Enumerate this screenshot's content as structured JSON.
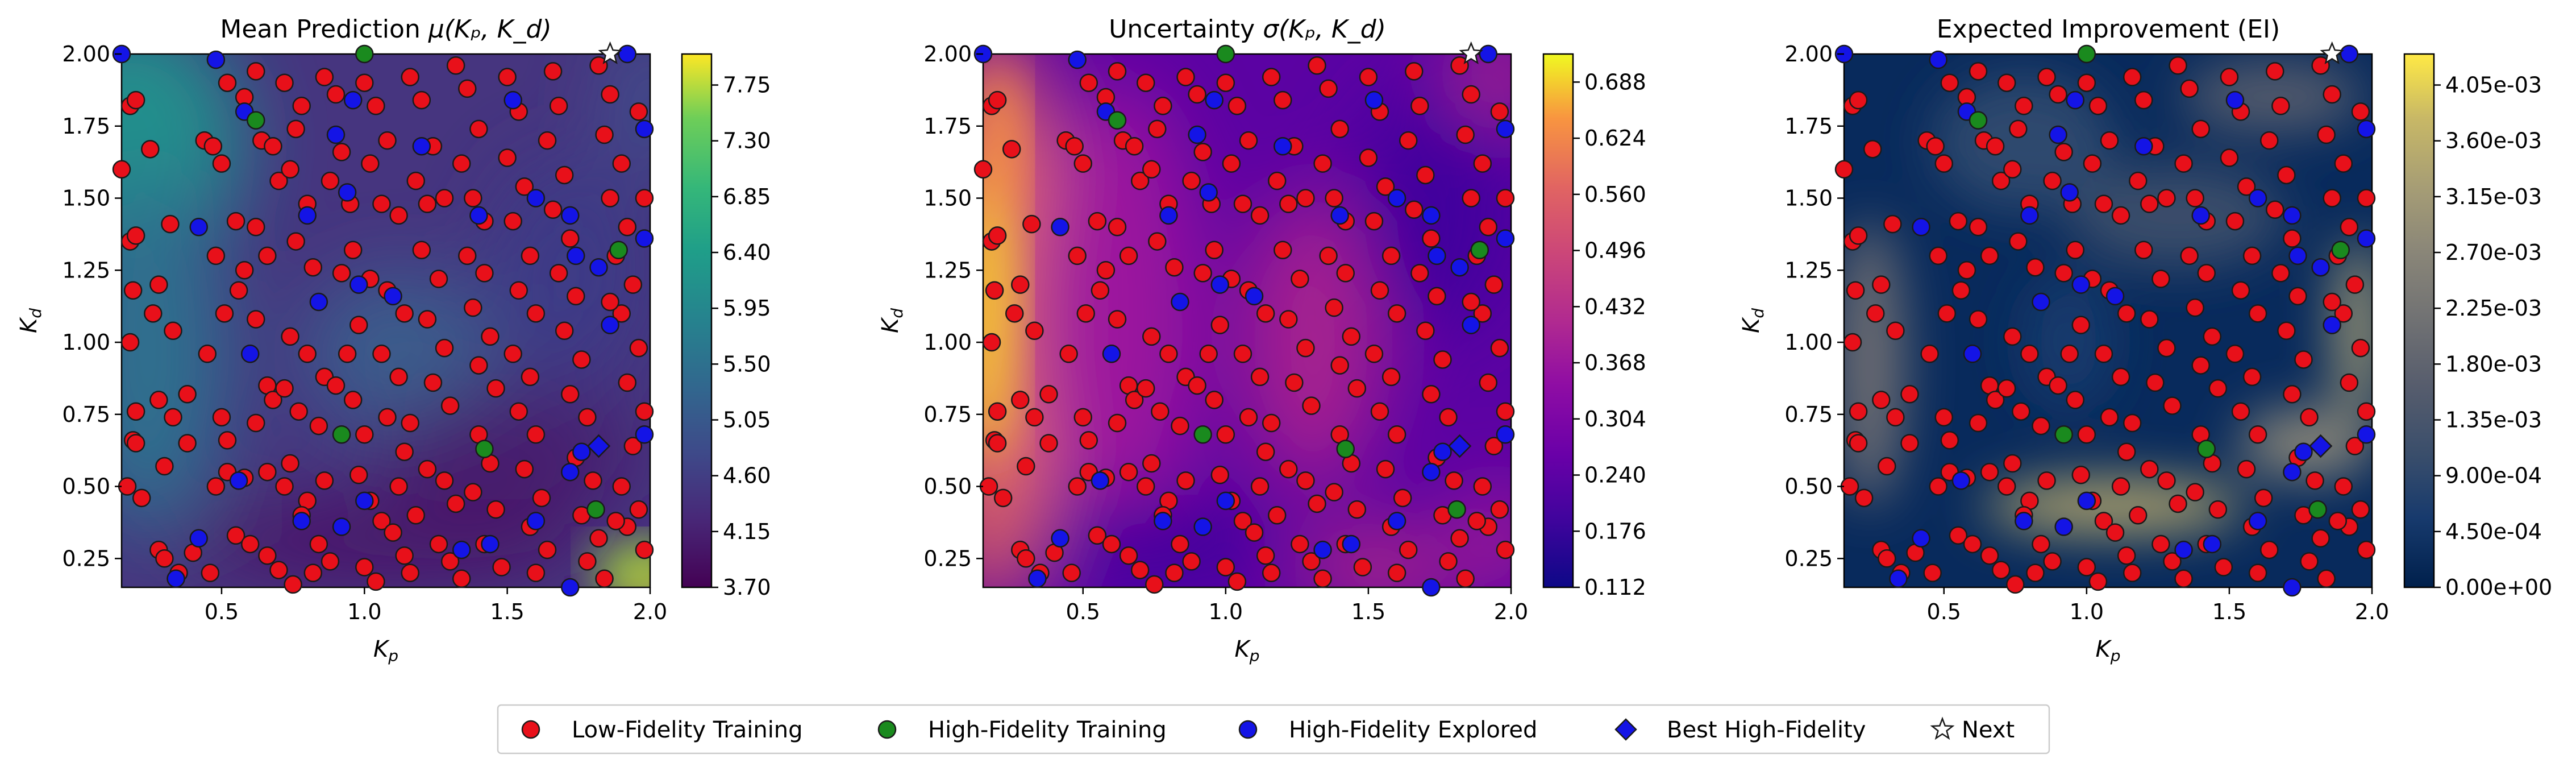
{
  "chart_data": [
    {
      "type": "heatmap",
      "title_main": "Mean Prediction ",
      "title_math": "μ(Kₚ, K_d)",
      "xlabel": "K_p",
      "ylabel": "K_d",
      "xlim": [
        0.15,
        2.0
      ],
      "ylim": [
        0.15,
        2.0
      ],
      "xticks": [
        "0.5",
        "1.0",
        "1.5",
        "2.0"
      ],
      "yticks": [
        "0.25",
        "0.50",
        "0.75",
        "1.00",
        "1.25",
        "1.50",
        "1.75",
        "2.00"
      ],
      "colormap": "viridis",
      "colorbar_range": [
        3.7,
        8.0
      ],
      "colorbar_ticks": [
        "3.70",
        "4.15",
        "4.60",
        "5.05",
        "5.50",
        "5.95",
        "6.40",
        "6.85",
        "7.30",
        "7.75"
      ]
    },
    {
      "type": "heatmap",
      "title_main": "Uncertainty ",
      "title_math": "σ(Kₚ, K_d)",
      "xlabel": "K_p",
      "ylabel": "K_d",
      "xlim": [
        0.15,
        2.0
      ],
      "ylim": [
        0.15,
        2.0
      ],
      "xticks": [
        "0.5",
        "1.0",
        "1.5",
        "2.0"
      ],
      "yticks": [
        "0.25",
        "0.50",
        "0.75",
        "1.00",
        "1.25",
        "1.50",
        "1.75",
        "2.00"
      ],
      "colormap": "plasma",
      "colorbar_range": [
        0.112,
        0.72
      ],
      "colorbar_ticks": [
        "0.112",
        "0.176",
        "0.240",
        "0.304",
        "0.368",
        "0.432",
        "0.496",
        "0.560",
        "0.624",
        "0.688"
      ]
    },
    {
      "type": "heatmap",
      "title_main": "Expected Improvement (EI)",
      "title_math": "",
      "xlabel": "K_p",
      "ylabel": "K_d",
      "xlim": [
        0.15,
        2.0
      ],
      "ylim": [
        0.15,
        2.0
      ],
      "xticks": [
        "0.5",
        "1.0",
        "1.5",
        "2.0"
      ],
      "yticks": [
        "0.25",
        "0.50",
        "0.75",
        "1.00",
        "1.25",
        "1.50",
        "1.75",
        "2.00"
      ],
      "colormap": "cividis",
      "colorbar_range": [
        0.0,
        0.0043
      ],
      "colorbar_ticks": [
        "0.00e+00",
        "4.50e-04",
        "9.00e-04",
        "1.35e-03",
        "1.80e-03",
        "2.25e-03",
        "2.70e-03",
        "3.15e-03",
        "3.60e-03",
        "4.05e-03"
      ]
    }
  ],
  "points": {
    "low_fidelity": [
      [
        0.18,
        1.82
      ],
      [
        0.2,
        1.84
      ],
      [
        0.15,
        1.6
      ],
      [
        0.25,
        1.67
      ],
      [
        0.18,
        1.35
      ],
      [
        0.2,
        1.37
      ],
      [
        0.32,
        1.41
      ],
      [
        0.28,
        1.2
      ],
      [
        0.19,
        1.18
      ],
      [
        0.26,
        1.1
      ],
      [
        0.18,
        1.0
      ],
      [
        0.33,
        1.04
      ],
      [
        0.28,
        0.8
      ],
      [
        0.2,
        0.76
      ],
      [
        0.19,
        0.66
      ],
      [
        0.2,
        0.65
      ],
      [
        0.33,
        0.74
      ],
      [
        0.38,
        0.82
      ],
      [
        0.3,
        0.57
      ],
      [
        0.17,
        0.5
      ],
      [
        0.22,
        0.46
      ],
      [
        0.38,
        0.65
      ],
      [
        0.28,
        0.28
      ],
      [
        0.3,
        0.25
      ],
      [
        0.35,
        0.2
      ],
      [
        0.4,
        0.27
      ],
      [
        0.44,
        1.7
      ],
      [
        0.47,
        1.68
      ],
      [
        0.5,
        1.62
      ],
      [
        0.52,
        1.9
      ],
      [
        0.58,
        1.85
      ],
      [
        0.48,
        1.3
      ],
      [
        0.55,
        1.42
      ],
      [
        0.58,
        1.25
      ],
      [
        0.45,
        0.96
      ],
      [
        0.51,
        1.1
      ],
      [
        0.56,
        1.18
      ],
      [
        0.5,
        0.74
      ],
      [
        0.52,
        0.66
      ],
      [
        0.48,
        0.5
      ],
      [
        0.52,
        0.55
      ],
      [
        0.58,
        0.53
      ],
      [
        0.46,
        0.2
      ],
      [
        0.55,
        0.33
      ],
      [
        0.6,
        0.3
      ],
      [
        0.62,
        1.94
      ],
      [
        0.64,
        1.7
      ],
      [
        0.68,
        1.68
      ],
      [
        0.7,
        1.56
      ],
      [
        0.62,
        1.4
      ],
      [
        0.66,
        1.3
      ],
      [
        0.62,
        1.08
      ],
      [
        0.66,
        0.85
      ],
      [
        0.68,
        0.8
      ],
      [
        0.62,
        0.72
      ],
      [
        0.72,
        0.84
      ],
      [
        0.66,
        0.55
      ],
      [
        0.72,
        0.5
      ],
      [
        0.74,
        0.58
      ],
      [
        0.66,
        0.26
      ],
      [
        0.7,
        0.21
      ],
      [
        0.75,
        0.16
      ],
      [
        0.72,
        1.9
      ],
      [
        0.76,
        1.74
      ],
      [
        0.78,
        1.82
      ],
      [
        0.74,
        1.6
      ],
      [
        0.8,
        1.48
      ],
      [
        0.76,
        1.35
      ],
      [
        0.82,
        1.26
      ],
      [
        0.74,
        1.02
      ],
      [
        0.8,
        0.96
      ],
      [
        0.86,
        0.88
      ],
      [
        0.77,
        0.76
      ],
      [
        0.84,
        0.71
      ],
      [
        0.8,
        0.45
      ],
      [
        0.86,
        0.52
      ],
      [
        0.78,
        0.4
      ],
      [
        0.84,
        0.3
      ],
      [
        0.88,
        0.24
      ],
      [
        0.82,
        0.2
      ],
      [
        0.86,
        1.92
      ],
      [
        0.9,
        1.86
      ],
      [
        0.92,
        1.66
      ],
      [
        0.88,
        1.56
      ],
      [
        0.95,
        1.48
      ],
      [
        0.96,
        1.32
      ],
      [
        0.92,
        1.24
      ],
      [
        0.98,
        1.06
      ],
      [
        0.94,
        0.96
      ],
      [
        0.9,
        0.85
      ],
      [
        0.96,
        0.8
      ],
      [
        1.0,
        0.68
      ],
      [
        0.98,
        0.54
      ],
      [
        1.02,
        0.45
      ],
      [
        1.06,
        0.38
      ],
      [
        1.1,
        0.34
      ],
      [
        1.0,
        0.22
      ],
      [
        1.04,
        0.17
      ],
      [
        1.0,
        1.9
      ],
      [
        1.04,
        1.82
      ],
      [
        1.08,
        1.7
      ],
      [
        1.02,
        1.62
      ],
      [
        1.06,
        1.48
      ],
      [
        1.12,
        1.44
      ],
      [
        1.02,
        1.22
      ],
      [
        1.08,
        1.18
      ],
      [
        1.14,
        1.1
      ],
      [
        1.06,
        0.96
      ],
      [
        1.12,
        0.88
      ],
      [
        1.08,
        0.74
      ],
      [
        1.16,
        0.72
      ],
      [
        1.14,
        0.62
      ],
      [
        1.12,
        0.5
      ],
      [
        1.18,
        0.4
      ],
      [
        1.14,
        0.26
      ],
      [
        1.16,
        0.2
      ],
      [
        1.16,
        1.92
      ],
      [
        1.2,
        1.84
      ],
      [
        1.24,
        1.68
      ],
      [
        1.18,
        1.56
      ],
      [
        1.22,
        1.48
      ],
      [
        1.28,
        1.5
      ],
      [
        1.2,
        1.32
      ],
      [
        1.26,
        1.22
      ],
      [
        1.22,
        1.08
      ],
      [
        1.28,
        0.98
      ],
      [
        1.24,
        0.86
      ],
      [
        1.3,
        0.78
      ],
      [
        1.22,
        0.56
      ],
      [
        1.28,
        0.52
      ],
      [
        1.32,
        0.44
      ],
      [
        1.26,
        0.3
      ],
      [
        1.3,
        0.24
      ],
      [
        1.34,
        0.18
      ],
      [
        1.32,
        1.96
      ],
      [
        1.36,
        1.88
      ],
      [
        1.4,
        1.74
      ],
      [
        1.34,
        1.62
      ],
      [
        1.38,
        1.5
      ],
      [
        1.42,
        1.42
      ],
      [
        1.36,
        1.3
      ],
      [
        1.42,
        1.24
      ],
      [
        1.38,
        1.12
      ],
      [
        1.44,
        1.02
      ],
      [
        1.4,
        0.92
      ],
      [
        1.46,
        0.84
      ],
      [
        1.4,
        0.68
      ],
      [
        1.44,
        0.58
      ],
      [
        1.38,
        0.48
      ],
      [
        1.46,
        0.42
      ],
      [
        1.42,
        0.3
      ],
      [
        1.48,
        0.22
      ],
      [
        1.5,
        1.92
      ],
      [
        1.54,
        1.8
      ],
      [
        1.5,
        1.64
      ],
      [
        1.56,
        1.54
      ],
      [
        1.52,
        1.42
      ],
      [
        1.58,
        1.3
      ],
      [
        1.54,
        1.18
      ],
      [
        1.6,
        1.1
      ],
      [
        1.52,
        0.96
      ],
      [
        1.58,
        0.88
      ],
      [
        1.54,
        0.76
      ],
      [
        1.6,
        0.68
      ],
      [
        1.56,
        0.56
      ],
      [
        1.62,
        0.46
      ],
      [
        1.58,
        0.36
      ],
      [
        1.64,
        0.28
      ],
      [
        1.6,
        0.2
      ],
      [
        1.66,
        1.94
      ],
      [
        1.68,
        1.82
      ],
      [
        1.64,
        1.7
      ],
      [
        1.7,
        1.58
      ],
      [
        1.66,
        1.46
      ],
      [
        1.72,
        1.36
      ],
      [
        1.68,
        1.24
      ],
      [
        1.74,
        1.16
      ],
      [
        1.7,
        1.04
      ],
      [
        1.76,
        0.94
      ],
      [
        1.72,
        0.82
      ],
      [
        1.78,
        0.74
      ],
      [
        1.74,
        0.6
      ],
      [
        1.8,
        0.52
      ],
      [
        1.76,
        0.4
      ],
      [
        1.82,
        0.32
      ],
      [
        1.78,
        0.24
      ],
      [
        1.84,
        0.18
      ],
      [
        1.82,
        1.96
      ],
      [
        1.86,
        1.86
      ],
      [
        1.84,
        1.72
      ],
      [
        1.9,
        1.62
      ],
      [
        1.86,
        1.5
      ],
      [
        1.92,
        1.4
      ],
      [
        1.88,
        1.3
      ],
      [
        1.94,
        1.2
      ],
      [
        1.9,
        1.1
      ],
      [
        1.96,
        0.98
      ],
      [
        1.92,
        0.86
      ],
      [
        1.98,
        0.76
      ],
      [
        1.94,
        0.64
      ],
      [
        1.9,
        0.5
      ],
      [
        1.96,
        0.42
      ],
      [
        1.92,
        0.36
      ],
      [
        1.98,
        0.28
      ],
      [
        1.88,
        0.38
      ],
      [
        1.86,
        1.14
      ],
      [
        1.98,
        1.5
      ],
      [
        1.96,
        1.8
      ]
    ],
    "high_fidelity": [
      [
        1.0,
        2.0
      ],
      [
        0.62,
        1.77
      ],
      [
        0.92,
        0.68
      ],
      [
        1.42,
        0.63
      ],
      [
        1.89,
        1.32
      ],
      [
        1.81,
        0.42
      ]
    ],
    "high_fidelity_explored": [
      [
        0.15,
        2.0
      ],
      [
        0.6,
        0.96
      ],
      [
        0.56,
        0.52
      ],
      [
        0.42,
        0.32
      ],
      [
        0.42,
        1.4
      ],
      [
        0.58,
        1.8
      ],
      [
        0.8,
        1.44
      ],
      [
        0.9,
        1.72
      ],
      [
        0.96,
        1.84
      ],
      [
        0.94,
        1.52
      ],
      [
        0.84,
        1.14
      ],
      [
        0.98,
        1.2
      ],
      [
        1.1,
        1.16
      ],
      [
        0.78,
        0.38
      ],
      [
        0.92,
        0.36
      ],
      [
        0.34,
        0.18
      ],
      [
        1.2,
        1.68
      ],
      [
        1.52,
        1.84
      ],
      [
        1.6,
        1.5
      ],
      [
        1.72,
        1.44
      ],
      [
        1.74,
        1.3
      ],
      [
        1.82,
        1.26
      ],
      [
        1.86,
        1.06
      ],
      [
        1.34,
        0.28
      ],
      [
        1.44,
        0.3
      ],
      [
        1.6,
        0.38
      ],
      [
        1.72,
        0.55
      ],
      [
        1.76,
        0.62
      ],
      [
        1.98,
        0.68
      ],
      [
        1.92,
        2.0
      ],
      [
        1.98,
        1.74
      ],
      [
        1.98,
        1.36
      ],
      [
        0.48,
        1.98
      ],
      [
        1.72,
        0.15
      ],
      [
        1.0,
        0.45
      ],
      [
        1.4,
        1.44
      ]
    ],
    "best_high_fidelity": [
      [
        1.82,
        0.64
      ]
    ],
    "next": [
      [
        1.86,
        2.0
      ]
    ]
  },
  "legend": {
    "low": "Low-Fidelity Training",
    "high": "High-Fidelity Training",
    "explored": "High-Fidelity Explored",
    "best": "Best High-Fidelity",
    "next": "Next"
  },
  "colors": {
    "low": "#e8101a",
    "high": "#1a8a1e",
    "explored": "#1414e6",
    "best": "#1414e6",
    "next": "#ffffff",
    "edge": "#1a1a1a"
  }
}
